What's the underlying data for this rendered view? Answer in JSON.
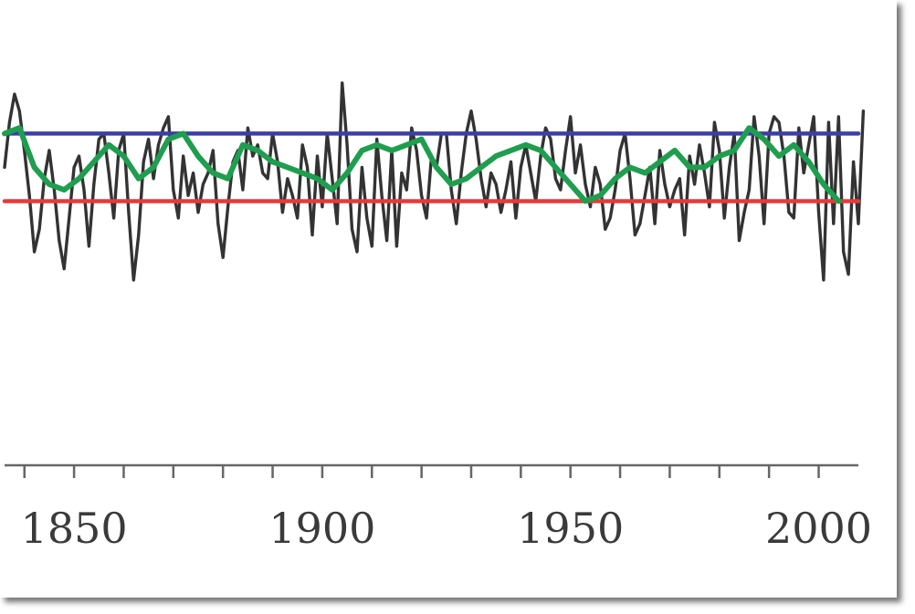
{
  "chart_data": {
    "type": "line",
    "title": "",
    "xlabel": "",
    "ylabel": "",
    "xlim": [
      1836,
      2008
    ],
    "ylim": [
      -3.2,
      2.6
    ],
    "x_tick_labels": [
      "1850",
      "1900",
      "1950",
      "2000"
    ],
    "x_tick_values": [
      1850,
      1900,
      1950,
      2000
    ],
    "x_minor_tick_step": 10,
    "grid": false,
    "legend": "none",
    "series": [
      {
        "color": "#333333",
        "style": "annual-values",
        "x_start": 1836,
        "x_step": 1,
        "values": [
          0.6,
          1.4,
          1.9,
          1.6,
          0.9,
          0.1,
          -0.9,
          -0.5,
          0.4,
          0.9,
          0.2,
          -0.7,
          -1.2,
          -0.3,
          0.6,
          0.8,
          0.2,
          -0.8,
          0.3,
          1.1,
          1.2,
          0.5,
          -0.3,
          0.9,
          1.2,
          -0.2,
          -1.4,
          -0.6,
          0.7,
          1.1,
          0.4,
          1.0,
          1.3,
          1.5,
          0.2,
          -0.3,
          0.8,
          0.1,
          0.5,
          -0.2,
          0.3,
          0.5,
          0.9,
          -0.4,
          -1.0,
          -0.1,
          0.7,
          0.9,
          0.2,
          1.3,
          0.8,
          1.0,
          0.5,
          0.4,
          1.2,
          0.7,
          -0.2,
          0.4,
          0.1,
          -0.3,
          1.0,
          0.6,
          -0.6,
          0.8,
          -0.1,
          1.2,
          0.4,
          -0.4,
          2.1,
          1.0,
          -0.5,
          -0.9,
          0.6,
          -0.3,
          -0.8,
          1.1,
          0.1,
          -0.7,
          0.9,
          -0.8,
          0.5,
          0.2,
          1.3,
          0.9,
          0.1,
          -0.3,
          0.8,
          0.6,
          1.2,
          1.2,
          0.2,
          -0.4,
          0.5,
          1.2,
          1.6,
          1.1,
          0.4,
          -0.1,
          0.5,
          0.3,
          -0.2,
          0.2,
          0.7,
          -0.3,
          0.6,
          1.0,
          0.5,
          0.0,
          0.8,
          1.3,
          1.1,
          0.4,
          0.2,
          0.9,
          1.5,
          0.5,
          1.0,
          0.3,
          -0.1,
          0.6,
          0.3,
          -0.5,
          -0.3,
          0.2,
          0.9,
          1.2,
          0.4,
          -0.6,
          -0.4,
          0.1,
          0.6,
          -0.4,
          0.9,
          0.3,
          -0.1,
          0.2,
          0.4,
          -0.6,
          0.8,
          0.3,
          1.0,
          0.5,
          -0.1,
          1.4,
          0.9,
          -0.3,
          0.6,
          1.2,
          -0.7,
          -0.2,
          0.2,
          1.5,
          0.8,
          -0.4,
          1.2,
          1.5,
          1.4,
          0.8,
          -0.2,
          -0.3,
          1.3,
          0.5,
          1.0,
          1.5,
          -0.2,
          -1.4,
          1.4,
          -0.4,
          1.5,
          -0.9,
          -1.3,
          0.7,
          -0.4,
          1.6
        ]
      },
      {
        "color": "#1f9e4f",
        "style": "smoothed",
        "x": [
          1836,
          1839,
          1842,
          1845,
          1848,
          1851,
          1854,
          1857,
          1860,
          1863,
          1866,
          1869,
          1872,
          1875,
          1878,
          1881,
          1884,
          1887,
          1890,
          1893,
          1896,
          1899,
          1902,
          1905,
          1908,
          1911,
          1914,
          1917,
          1920,
          1923,
          1926,
          1929,
          1932,
          1935,
          1938,
          1941,
          1944,
          1947,
          1950,
          1953,
          1956,
          1959,
          1962,
          1965,
          1968,
          1971,
          1974,
          1977,
          1980,
          1983,
          1986,
          1989,
          1992,
          1995,
          1998,
          2001,
          2004
        ],
        "values": [
          1.2,
          1.3,
          0.6,
          0.3,
          0.2,
          0.4,
          0.7,
          1.0,
          0.8,
          0.4,
          0.6,
          1.1,
          1.2,
          0.8,
          0.5,
          0.4,
          1.0,
          0.9,
          0.7,
          0.6,
          0.5,
          0.4,
          0.2,
          0.5,
          0.9,
          1.0,
          0.9,
          1.0,
          1.1,
          0.6,
          0.3,
          0.4,
          0.6,
          0.8,
          0.9,
          1.0,
          0.9,
          0.6,
          0.3,
          0.0,
          0.1,
          0.4,
          0.6,
          0.5,
          0.7,
          0.9,
          0.6,
          0.6,
          0.8,
          0.9,
          1.3,
          1.1,
          0.8,
          1.0,
          0.7,
          0.3,
          0.0
        ]
      },
      {
        "color": "#3d3fa6",
        "style": "horizontal-reference",
        "x": [
          1836,
          2008
        ],
        "values": [
          1.2,
          1.2
        ]
      },
      {
        "color": "#e8393a",
        "style": "horizontal-reference",
        "x": [
          1836,
          2008
        ],
        "values": [
          0.0,
          0.0
        ]
      }
    ]
  }
}
